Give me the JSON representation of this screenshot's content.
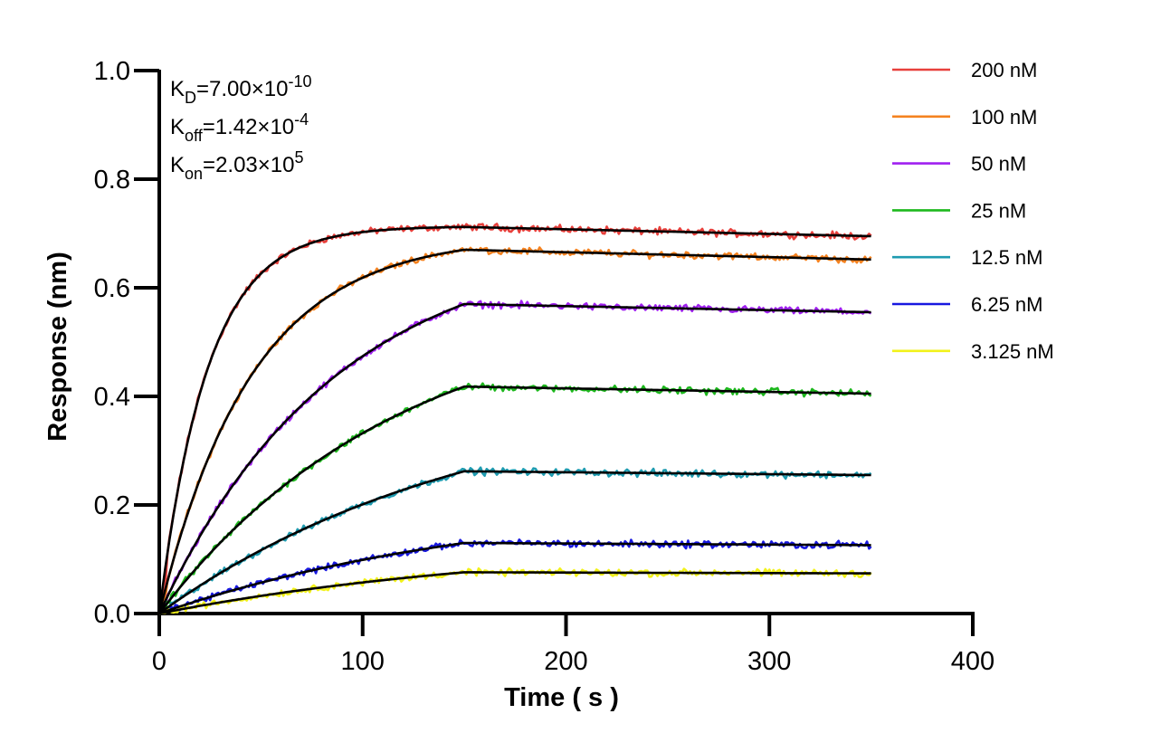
{
  "chart_data": {
    "type": "line",
    "xlabel": "Time ( s )",
    "ylabel": "Response (nm)",
    "xlim": [
      0,
      400
    ],
    "ylim": [
      0,
      1.0
    ],
    "xticks": [
      "0",
      "100",
      "200",
      "300",
      "400"
    ],
    "yticks": [
      "0.0",
      "0.2",
      "0.4",
      "0.6",
      "0.8",
      "1.0"
    ],
    "grid": false,
    "legend_position": "right",
    "association_end_s": 150,
    "end_s": 350,
    "kinetic_constants": [
      {
        "symbol": "K",
        "sub": "D",
        "text": "=7.00×10",
        "sup": "-10"
      },
      {
        "symbol": "K",
        "sub": "off",
        "text": "=1.42×10",
        "sup": "-4"
      },
      {
        "symbol": "K",
        "sub": "on",
        "text": "=2.03×10",
        "sup": "5"
      }
    ],
    "fit_color": "#000000",
    "series": [
      {
        "name": "200 nM",
        "color": "#e8403c",
        "rate": 0.042,
        "peak": 0.712,
        "end": 0.695
      },
      {
        "name": "100 nM",
        "color": "#f5821f",
        "rate": 0.022,
        "peak": 0.67,
        "end": 0.652
      },
      {
        "name": "50 nM",
        "color": "#a020f0",
        "rate": 0.0115,
        "peak": 0.57,
        "end": 0.555
      },
      {
        "name": "25 nM",
        "color": "#1db81d",
        "rate": 0.0085,
        "peak": 0.418,
        "end": 0.405
      },
      {
        "name": "12.5 nM",
        "color": "#1e9bb0",
        "rate": 0.0065,
        "peak": 0.262,
        "end": 0.255
      },
      {
        "name": "6.25 nM",
        "color": "#1818e0",
        "rate": 0.006,
        "peak": 0.13,
        "end": 0.126
      },
      {
        "name": "3.125 nM",
        "color": "#f2f21a",
        "rate": 0.0055,
        "peak": 0.076,
        "end": 0.074
      }
    ]
  }
}
